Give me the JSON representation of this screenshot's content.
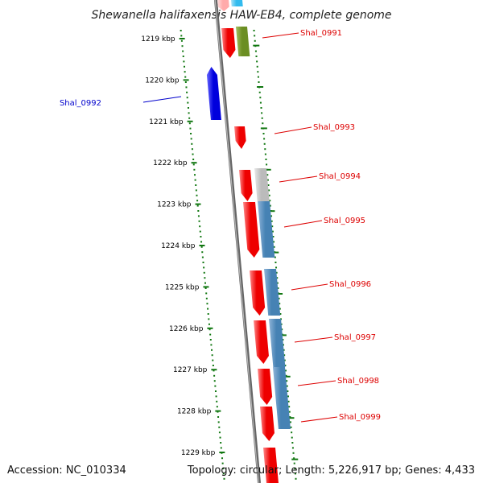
{
  "title": "Shewanella halifaxensis HAW-EB4, complete genome",
  "ticks": [
    {
      "kbp": 1219,
      "label": "1219 kbp"
    },
    {
      "kbp": 1220,
      "label": "1220 kbp"
    },
    {
      "kbp": 1221,
      "label": "1221 kbp"
    },
    {
      "kbp": 1222,
      "label": "1222 kbp"
    },
    {
      "kbp": 1223,
      "label": "1223 kbp"
    },
    {
      "kbp": 1224,
      "label": "1224 kbp"
    },
    {
      "kbp": 1225,
      "label": "1225 kbp"
    },
    {
      "kbp": 1226,
      "label": "1226 kbp"
    },
    {
      "kbp": 1227,
      "label": "1227 kbp"
    },
    {
      "kbp": 1228,
      "label": "1228 kbp"
    },
    {
      "kbp": 1229,
      "label": "1229 kbp"
    }
  ],
  "genes": [
    {
      "label": "Shal_0991",
      "strand": "+",
      "color": "#dd0000"
    },
    {
      "label": "Shal_0992",
      "strand": "-",
      "color": "#0000cc"
    },
    {
      "label": "Shal_0993",
      "strand": "+",
      "color": "#dd0000"
    },
    {
      "label": "Shal_0994",
      "strand": "+",
      "color": "#dd0000"
    },
    {
      "label": "Shal_0995",
      "strand": "+",
      "color": "#dd0000"
    },
    {
      "label": "Shal_0996",
      "strand": "+",
      "color": "#dd0000"
    },
    {
      "label": "Shal_0997",
      "strand": "+",
      "color": "#dd0000"
    },
    {
      "label": "Shal_0998",
      "strand": "+",
      "color": "#dd0000"
    },
    {
      "label": "Shal_0999",
      "strand": "+",
      "color": "#dd0000"
    }
  ],
  "colors": {
    "forward_gene": "#ee0000",
    "reverse_gene": "#0000dd",
    "backbone": "#888888",
    "tick_marks": "#117711",
    "cog_steel_blue": "#4682b4",
    "cog_olive": "#6b8e23",
    "cog_gray": "#bbbbbb",
    "cog_sky": "#33bbee",
    "cog_pink": "#ffaaaa"
  },
  "footer": {
    "accession": "Accession: NC_010334",
    "info": "Topology: circular; Length: 5,226,917 bp; Genes: 4,433"
  }
}
